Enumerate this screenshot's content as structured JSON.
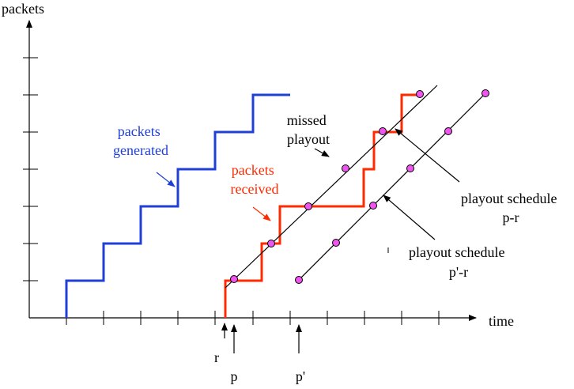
{
  "axes": {
    "y_label": "packets",
    "x_label": "time"
  },
  "annotations": {
    "generated_line1": "packets",
    "generated_line2": "generated",
    "received_line1": "packets",
    "received_line2": "received",
    "missed_line1": "missed",
    "missed_line2": "playout",
    "schedule1_line1": "playout schedule",
    "schedule1_line2": "p-r",
    "schedule2_line1": "playout schedule",
    "schedule2_line2": "p'-r"
  },
  "markers": {
    "r": "r",
    "p": "p",
    "p_prime": "p'"
  },
  "colors": {
    "generated": "#1f3fd6",
    "received": "#ff2a00",
    "point_fill": "#ee55ee",
    "axis": "#000000"
  }
}
